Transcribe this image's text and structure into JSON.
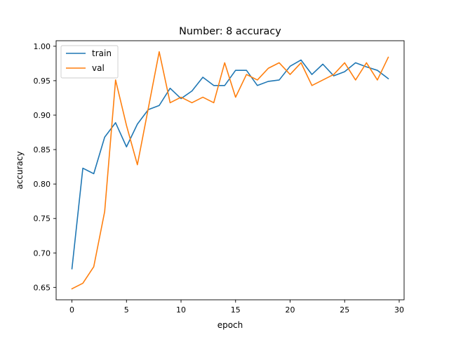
{
  "chart_data": {
    "type": "line",
    "title": "Number: 8 accuracy",
    "xlabel": "epoch",
    "ylabel": "accuracy",
    "xlim": [
      -1.45,
      30.45
    ],
    "ylim": [
      0.632,
      1.008
    ],
    "xticks": [
      0,
      5,
      10,
      15,
      20,
      25,
      30
    ],
    "yticks": [
      0.65,
      0.7,
      0.75,
      0.8,
      0.85,
      0.9,
      0.95,
      1.0
    ],
    "ytick_labels": [
      "0.65",
      "0.70",
      "0.75",
      "0.80",
      "0.85",
      "0.90",
      "0.95",
      "1.00"
    ],
    "grid": false,
    "legend": "top-left",
    "x": [
      0,
      1,
      2,
      3,
      4,
      5,
      6,
      7,
      8,
      9,
      10,
      11,
      12,
      13,
      14,
      15,
      16,
      17,
      18,
      19,
      20,
      21,
      22,
      23,
      24,
      25,
      26,
      27,
      28,
      29
    ],
    "series": [
      {
        "name": "train",
        "color": "#1f77b4",
        "values": [
          0.677,
          0.823,
          0.815,
          0.868,
          0.889,
          0.854,
          0.887,
          0.908,
          0.914,
          0.939,
          0.924,
          0.935,
          0.955,
          0.943,
          0.943,
          0.965,
          0.965,
          0.943,
          0.949,
          0.951,
          0.971,
          0.98,
          0.959,
          0.974,
          0.957,
          0.963,
          0.976,
          0.97,
          0.965,
          0.953
        ]
      },
      {
        "name": "val",
        "color": "#ff7f0e",
        "values": [
          0.648,
          0.656,
          0.68,
          0.76,
          0.951,
          0.885,
          0.828,
          0.91,
          0.992,
          0.918,
          0.926,
          0.918,
          0.926,
          0.918,
          0.976,
          0.926,
          0.959,
          0.951,
          0.968,
          0.976,
          0.959,
          0.976,
          0.943,
          0.951,
          0.959,
          0.976,
          0.951,
          0.976,
          0.951,
          0.984
        ]
      }
    ]
  }
}
